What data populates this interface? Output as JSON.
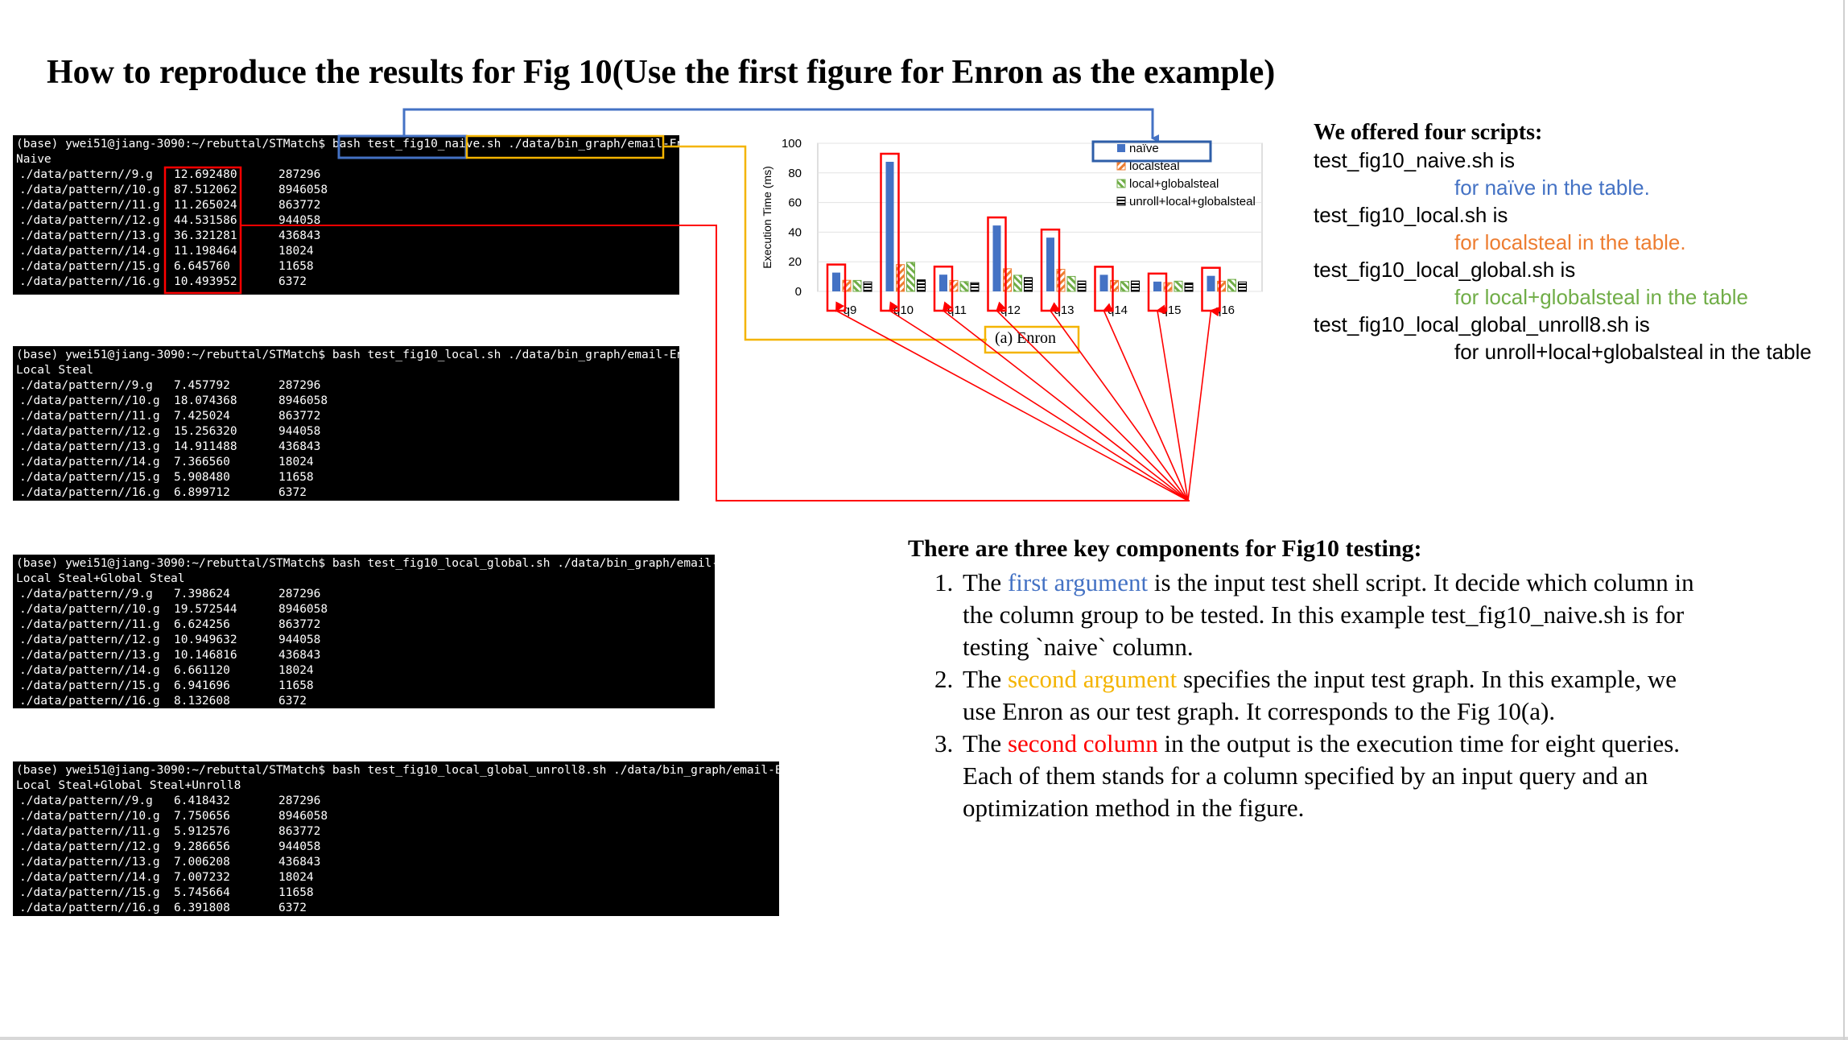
{
  "title": "How to reproduce the results for Fig 10(Use the first figure for Enron as the example)",
  "terminals": [
    {
      "prompt_pre": "(base) ywei51@jiang-3090:~/rebuttal/STMatch$ bash ",
      "script": "test_fig10_naive.sh",
      "arg": "./data/bin_graph/email-Enron/",
      "label": "Naive",
      "rows": [
        [
          "./data/pattern//9.g",
          "12.692480",
          "287296"
        ],
        [
          "./data/pattern//10.g",
          "87.512062",
          "8946058"
        ],
        [
          "./data/pattern//11.g",
          "11.265024",
          "863772"
        ],
        [
          "./data/pattern//12.g",
          "44.531586",
          "944058"
        ],
        [
          "./data/pattern//13.g",
          "36.321281",
          "436843"
        ],
        [
          "./data/pattern//14.g",
          "11.198464",
          "18024"
        ],
        [
          "./data/pattern//15.g",
          "6.645760",
          "11658"
        ],
        [
          "./data/pattern//16.g",
          "10.493952",
          "6372"
        ]
      ]
    },
    {
      "prompt_pre": "(base) ywei51@jiang-3090:~/rebuttal/STMatch$ bash ",
      "script": "test_fig10_local.sh",
      "arg": "./data/bin_graph/email-Enron/",
      "label": "Local Steal",
      "rows": [
        [
          "./data/pattern//9.g",
          "7.457792",
          "287296"
        ],
        [
          "./data/pattern//10.g",
          "18.074368",
          "8946058"
        ],
        [
          "./data/pattern//11.g",
          "7.425024",
          "863772"
        ],
        [
          "./data/pattern//12.g",
          "15.256320",
          "944058"
        ],
        [
          "./data/pattern//13.g",
          "14.911488",
          "436843"
        ],
        [
          "./data/pattern//14.g",
          "7.366560",
          "18024"
        ],
        [
          "./data/pattern//15.g",
          "5.908480",
          "11658"
        ],
        [
          "./data/pattern//16.g",
          "6.899712",
          "6372"
        ]
      ]
    },
    {
      "prompt_pre": "(base) ywei51@jiang-3090:~/rebuttal/STMatch$ bash ",
      "script": "test_fig10_local_global.sh",
      "arg": "./data/bin_graph/email-Enron/",
      "label": "Local Steal+Global Steal",
      "rows": [
        [
          "./data/pattern//9.g",
          "7.398624",
          "287296"
        ],
        [
          "./data/pattern//10.g",
          "19.572544",
          "8946058"
        ],
        [
          "./data/pattern//11.g",
          "6.624256",
          "863772"
        ],
        [
          "./data/pattern//12.g",
          "10.949632",
          "944058"
        ],
        [
          "./data/pattern//13.g",
          "10.146816",
          "436843"
        ],
        [
          "./data/pattern//14.g",
          "6.661120",
          "18024"
        ],
        [
          "./data/pattern//15.g",
          "6.941696",
          "11658"
        ],
        [
          "./data/pattern//16.g",
          "8.132608",
          "6372"
        ]
      ]
    },
    {
      "prompt_pre": "(base) ywei51@jiang-3090:~/rebuttal/STMatch$ bash ",
      "script": "test_fig10_local_global_unroll8.sh",
      "arg": "./data/bin_graph/email-Enron/",
      "label": "Local Steal+Global Steal+Unroll8",
      "rows": [
        [
          "./data/pattern//9.g",
          "6.418432",
          "287296"
        ],
        [
          "./data/pattern//10.g",
          "7.750656",
          "8946058"
        ],
        [
          "./data/pattern//11.g",
          "5.912576",
          "863772"
        ],
        [
          "./data/pattern//12.g",
          "9.286656",
          "944058"
        ],
        [
          "./data/pattern//13.g",
          "7.006208",
          "436843"
        ],
        [
          "./data/pattern//14.g",
          "7.007232",
          "18024"
        ],
        [
          "./data/pattern//15.g",
          "5.745664",
          "11658"
        ],
        [
          "./data/pattern//16.g",
          "6.391808",
          "6372"
        ]
      ]
    }
  ],
  "chart_data": {
    "type": "bar",
    "categories": [
      "q9",
      "q10",
      "q11",
      "q12",
      "q13",
      "q14",
      "q15",
      "q16"
    ],
    "series": [
      {
        "name": "naïve",
        "color": "#4472c4",
        "values": [
          12.7,
          87.5,
          11.3,
          44.5,
          36.3,
          11.2,
          6.6,
          10.5
        ]
      },
      {
        "name": "localsteal",
        "color": "#ed7d31",
        "values": [
          7.5,
          18.1,
          7.4,
          15.3,
          14.9,
          7.4,
          5.9,
          6.9
        ]
      },
      {
        "name": "local+globalsteal",
        "color": "#70ad47",
        "values": [
          7.4,
          19.6,
          6.6,
          10.9,
          10.1,
          6.7,
          6.9,
          8.1
        ]
      },
      {
        "name": "unroll+local+globalsteal",
        "color": "#000000",
        "values": [
          6.4,
          7.8,
          5.9,
          9.3,
          7.0,
          7.0,
          5.7,
          6.4
        ]
      }
    ],
    "ylabel": "Execution Time (ms)",
    "ylim": [
      0,
      100
    ],
    "yticks": [
      0,
      20,
      40,
      60,
      80,
      100
    ],
    "subtitle": "(a) Enron",
    "legend": "top-right"
  },
  "scripts": {
    "heading": "We offered four scripts:",
    "items": [
      {
        "name": "test_fig10_naive.sh is",
        "desc": "for naïve in the table.",
        "color": "#4472c4"
      },
      {
        "name": "test_fig10_local.sh is",
        "desc": "for localsteal in the table.",
        "color": "#ed7d31"
      },
      {
        "name": "test_fig10_local_global.sh is",
        "desc": "for local+globalsteal in the table",
        "color": "#70ad47"
      },
      {
        "name": "test_fig10_local_global_unroll8.sh is",
        "desc": "for unroll+local+globalsteal in the table",
        "color": "#000000"
      }
    ]
  },
  "components": {
    "heading": "There are three key components for Fig10 testing:",
    "items": [
      {
        "pre": "The ",
        "hl": "first argument",
        "color": "#4472c4",
        "post": " is the input test shell script. It decide which column in the column group to be tested. In this example test_fig10_naive.sh is for testing `naive` column."
      },
      {
        "pre": "The ",
        "hl": "second argument",
        "color": "#f4b400",
        "post": " specifies the input test graph. In this example, we use Enron as our test graph. It corresponds to the Fig 10(a)."
      },
      {
        "pre": "The ",
        "hl": "second column",
        "color": "#ff0000",
        "post": " in the output is the execution time for eight queries. Each of them stands for a column specified by an input query and an optimization method in the figure."
      }
    ]
  }
}
